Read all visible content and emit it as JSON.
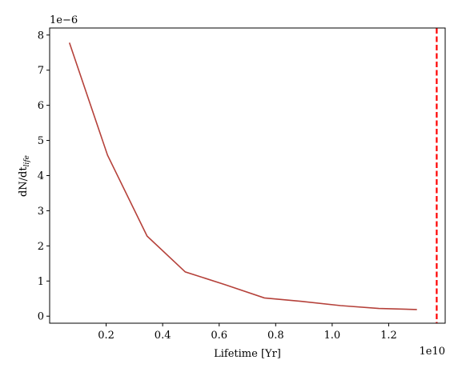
{
  "chart_data": {
    "type": "line",
    "xlabel": "Lifetime [Yr]",
    "ylabel_main": "dN/dt",
    "ylabel_sub": "life",
    "x_multiplier_label": "1e10",
    "y_multiplier_label": "1e−6",
    "xlim": [
      0.0,
      1.4
    ],
    "ylim": [
      -0.2,
      8.2
    ],
    "x_ticks": [
      0.2,
      0.4,
      0.6,
      0.8,
      1.0,
      1.2
    ],
    "x_tick_labels": [
      "0.2",
      "0.4",
      "0.6",
      "0.8",
      "1.0",
      "1.2"
    ],
    "y_ticks": [
      0,
      1,
      2,
      3,
      4,
      5,
      6,
      7,
      8
    ],
    "y_tick_labels": [
      "0",
      "1",
      "2",
      "3",
      "4",
      "5",
      "6",
      "7",
      "8"
    ],
    "grid": false,
    "series": [
      {
        "color": "#b5413a",
        "x": [
          0.07,
          0.205,
          0.345,
          0.48,
          0.62,
          0.76,
          0.895,
          1.03,
          1.165,
          1.3
        ],
        "y": [
          7.78,
          4.58,
          2.28,
          1.26,
          0.9,
          0.52,
          0.42,
          0.3,
          0.22,
          0.19
        ]
      }
    ],
    "vlines": [
      {
        "x": 1.37,
        "color": "#ff0000",
        "style": "dashed"
      }
    ]
  }
}
